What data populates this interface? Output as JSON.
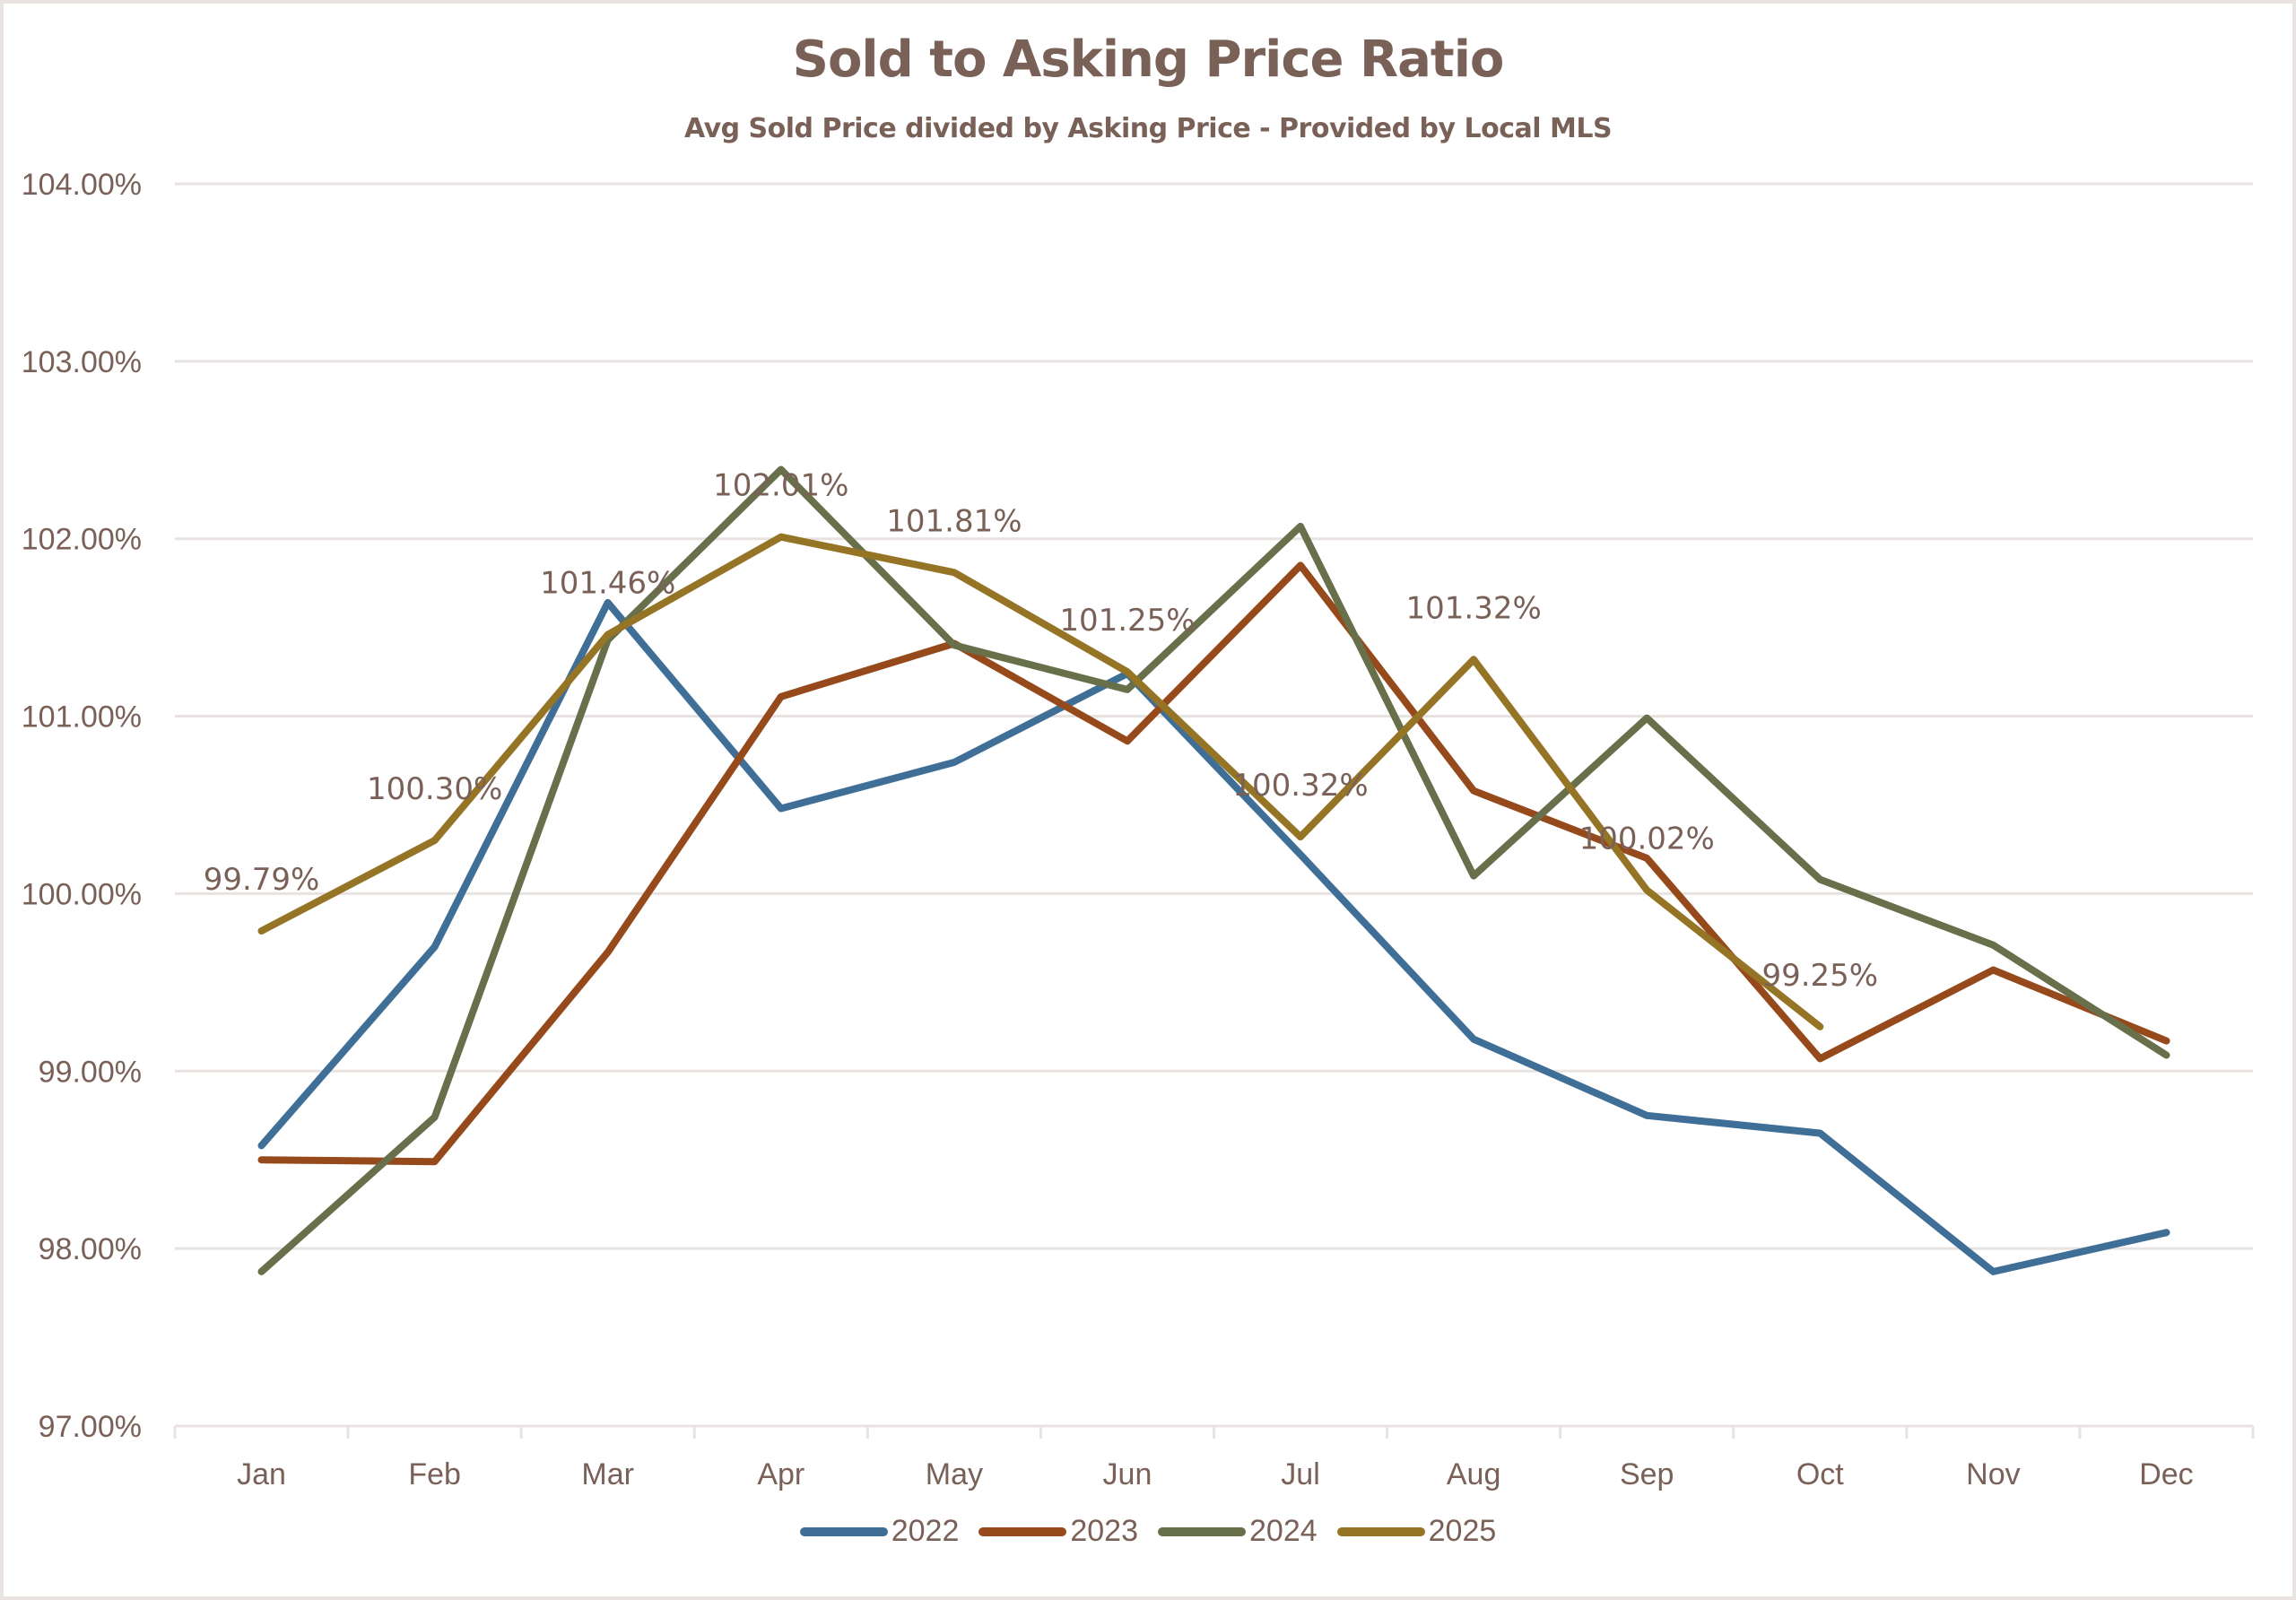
{
  "chart_data": {
    "type": "line",
    "title": "Sold to Asking Price Ratio",
    "subtitle": "Avg Sold Price divided by Asking Price - Provided by Local MLS",
    "xlabel": "",
    "ylabel": "",
    "categories": [
      "Jan",
      "Feb",
      "Mar",
      "Apr",
      "May",
      "Jun",
      "Jul",
      "Aug",
      "Sep",
      "Oct",
      "Nov",
      "Dec"
    ],
    "ylim": [
      97.0,
      104.0
    ],
    "yticks": [
      97,
      98,
      99,
      100,
      101,
      102,
      103,
      104
    ],
    "ytick_labels": [
      "97.00%",
      "98.00%",
      "99.00%",
      "100.00%",
      "101.00%",
      "102.00%",
      "103.00%",
      "104.00%"
    ],
    "grid": true,
    "legend_position": "bottom",
    "series": [
      {
        "name": "2022",
        "color": "#3F6F97",
        "values": [
          98.58,
          99.7,
          101.64,
          100.48,
          100.74,
          101.24,
          100.22,
          99.18,
          98.75,
          98.65,
          97.87,
          98.09
        ]
      },
      {
        "name": "2023",
        "color": "#964A1B",
        "values": [
          98.5,
          98.49,
          99.67,
          101.11,
          101.41,
          100.86,
          101.85,
          100.58,
          100.2,
          99.07,
          99.57,
          99.17
        ]
      },
      {
        "name": "2024",
        "color": "#67704A",
        "values": [
          97.87,
          98.74,
          101.43,
          102.39,
          101.4,
          101.15,
          102.07,
          100.1,
          100.99,
          100.08,
          99.71,
          99.09
        ]
      },
      {
        "name": "2025",
        "color": "#957425",
        "values": [
          99.79,
          100.3,
          101.46,
          102.01,
          101.81,
          101.25,
          100.32,
          101.32,
          100.02,
          99.25,
          null,
          null
        ],
        "data_labels": [
          "99.79%",
          "100.30%",
          "101.46%",
          "102.01%",
          "101.81%",
          "101.25%",
          "100.32%",
          "101.32%",
          "100.02%",
          "99.25%",
          null,
          null
        ]
      }
    ]
  },
  "colors": {
    "text": "#7A6158",
    "grid": "#E8E3E0",
    "border": "#E8E3E0"
  }
}
